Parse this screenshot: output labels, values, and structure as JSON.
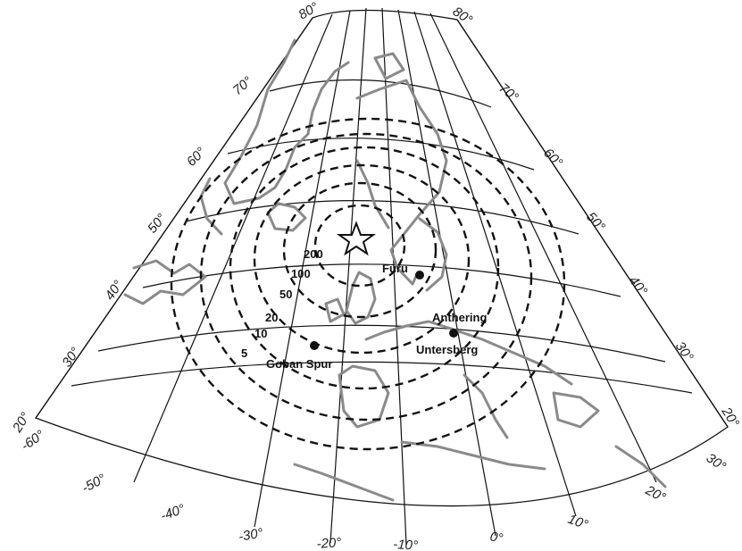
{
  "latitude_labels_left": [
    "80°",
    "70°",
    "60°",
    "50°",
    "40°",
    "30°",
    "20°"
  ],
  "latitude_labels_right": [
    "80°",
    "70°",
    "60°",
    "50°",
    "40°",
    "30°",
    "20°"
  ],
  "longitude_labels": [
    "-60°",
    "-50°",
    "-40°",
    "-30°",
    "-20°",
    "-10°",
    "0°",
    "10°",
    "20°",
    "30°"
  ],
  "ring_labels": [
    "200",
    "100",
    "50",
    "20",
    "10",
    "5"
  ],
  "sites": {
    "furu": "Furu",
    "anthering": "Anthering",
    "untersberg": "Untersberg",
    "goban_spur": "Goban Spur"
  },
  "colors": {
    "graticule": "#111111",
    "coastline": "#8a8a8a",
    "rings": "#111111"
  }
}
